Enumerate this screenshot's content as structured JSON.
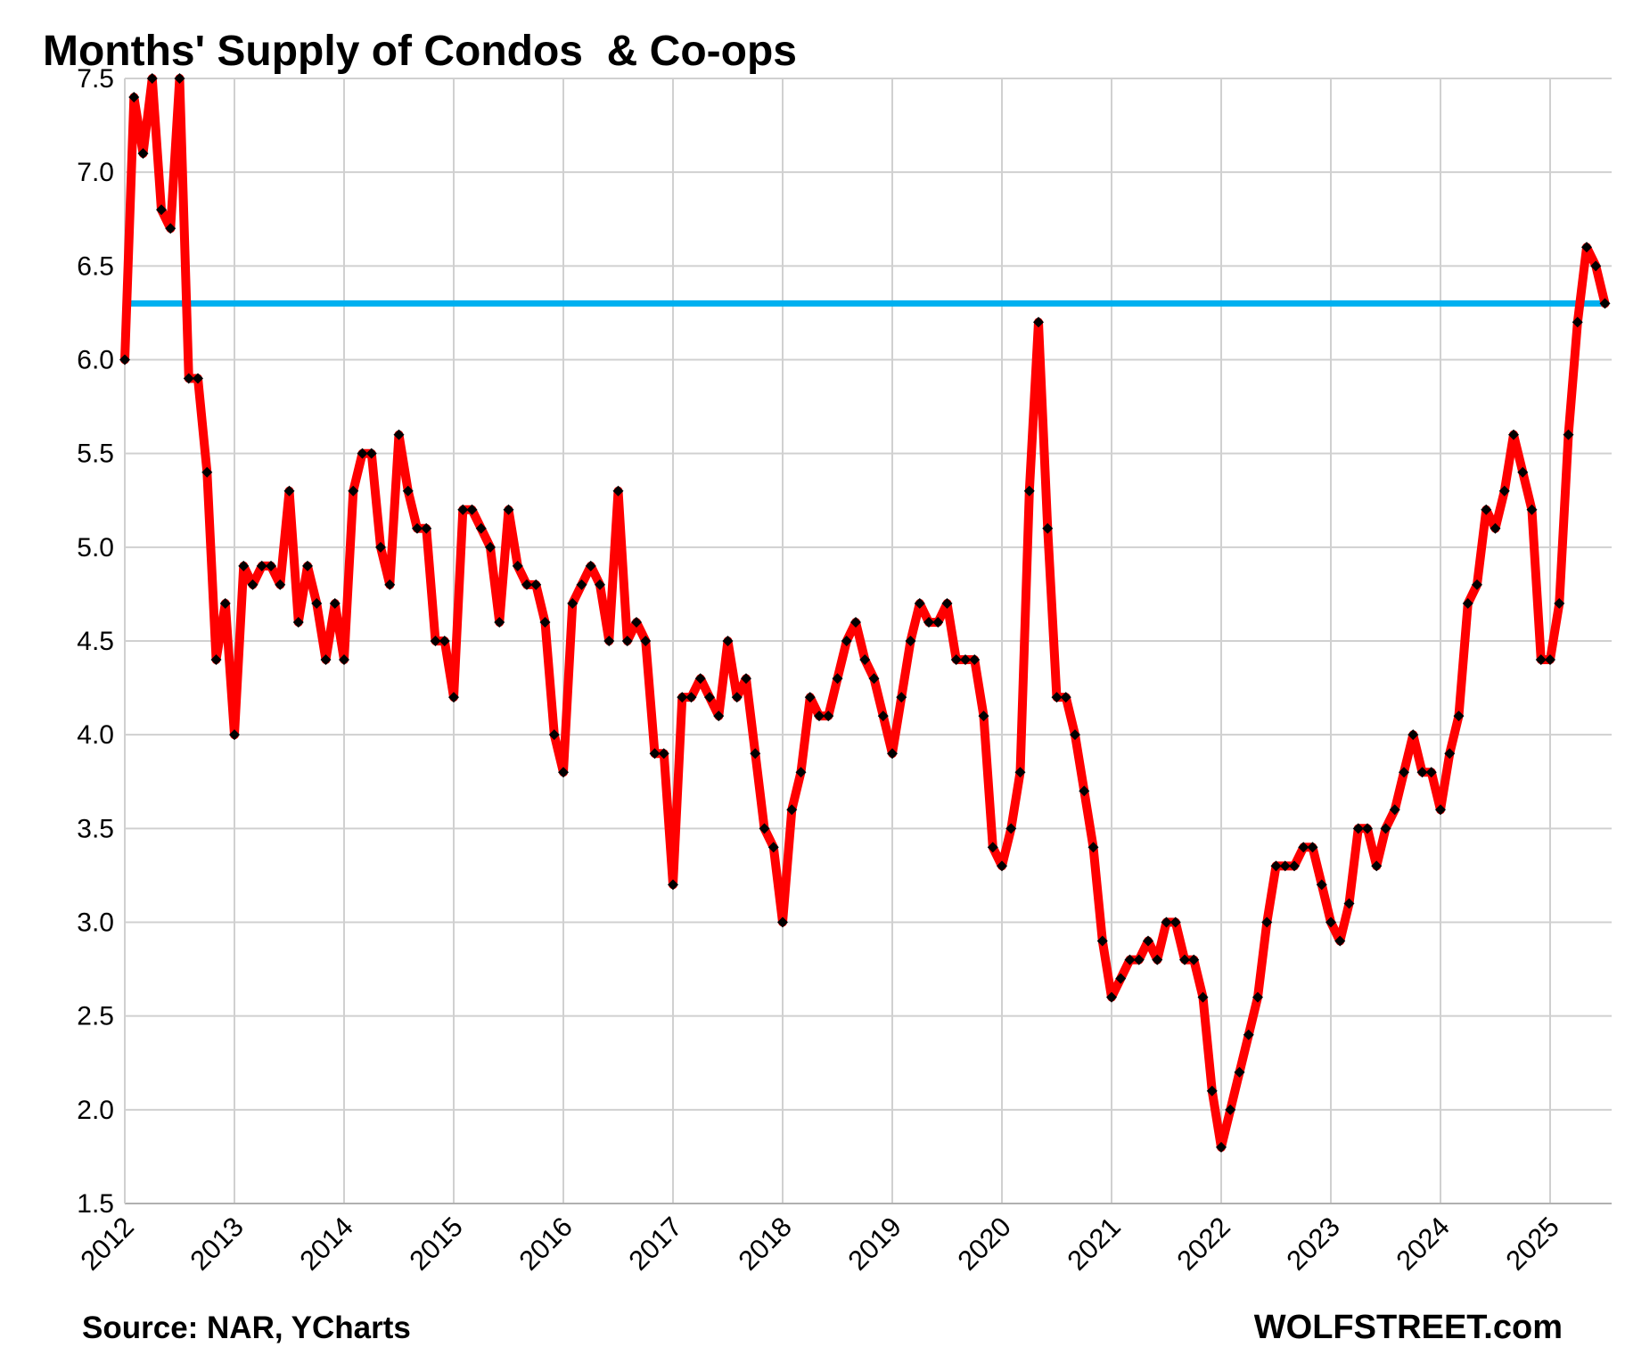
{
  "chart_data": {
    "type": "line",
    "title": "Months' Supply of Condos  & Co-ops",
    "source": "Source: NAR, YCharts",
    "brand": "WOLFSTREET.com",
    "xlabel": "",
    "ylabel": "",
    "x_start": "2012-01",
    "x_ticks": [
      "2012",
      "2013",
      "2014",
      "2015",
      "2016",
      "2017",
      "2018",
      "2019",
      "2020",
      "2021",
      "2022",
      "2023",
      "2024",
      "2025"
    ],
    "y_ticks": [
      "1.5",
      "2.0",
      "2.5",
      "3.0",
      "3.5",
      "4.0",
      "4.5",
      "5.0",
      "5.5",
      "6.0",
      "6.5",
      "7.0",
      "7.5"
    ],
    "ylim": [
      1.5,
      7.5
    ],
    "xlim": [
      "2012-01",
      "2025-07"
    ],
    "grid": true,
    "legend": "none",
    "series": [
      {
        "color": "#ff0000",
        "marker_color": "#000000",
        "values": [
          6.0,
          7.4,
          7.1,
          7.5,
          6.8,
          6.7,
          7.5,
          5.9,
          5.9,
          5.4,
          4.4,
          4.7,
          4.0,
          4.9,
          4.8,
          4.9,
          4.9,
          4.8,
          5.3,
          4.6,
          4.9,
          4.7,
          4.4,
          4.7,
          4.4,
          5.3,
          5.5,
          5.5,
          5.0,
          4.8,
          5.6,
          5.3,
          5.1,
          5.1,
          4.5,
          4.5,
          4.2,
          5.2,
          5.2,
          5.1,
          5.0,
          4.6,
          5.2,
          4.9,
          4.8,
          4.8,
          4.6,
          4.0,
          3.8,
          4.7,
          4.8,
          4.9,
          4.8,
          4.5,
          5.3,
          4.5,
          4.6,
          4.5,
          3.9,
          3.9,
          3.2,
          4.2,
          4.2,
          4.3,
          4.2,
          4.1,
          4.5,
          4.2,
          4.3,
          3.9,
          3.5,
          3.4,
          3.0,
          3.6,
          3.8,
          4.2,
          4.1,
          4.1,
          4.3,
          4.5,
          4.6,
          4.4,
          4.3,
          4.1,
          3.9,
          4.2,
          4.5,
          4.7,
          4.6,
          4.6,
          4.7,
          4.4,
          4.4,
          4.4,
          4.1,
          3.4,
          3.3,
          3.5,
          3.8,
          5.3,
          6.2,
          5.1,
          4.2,
          4.2,
          4.0,
          3.7,
          3.4,
          2.9,
          2.6,
          2.7,
          2.8,
          2.8,
          2.9,
          2.8,
          3.0,
          3.0,
          2.8,
          2.8,
          2.6,
          2.1,
          1.8,
          2.0,
          2.2,
          2.4,
          2.6,
          3.0,
          3.3,
          3.3,
          3.3,
          3.4,
          3.4,
          3.2,
          3.0,
          2.9,
          3.1,
          3.5,
          3.5,
          3.3,
          3.5,
          3.6,
          3.8,
          4.0,
          3.8,
          3.8,
          3.6,
          3.9,
          4.1,
          4.7,
          4.8,
          5.2,
          5.1,
          5.3,
          5.6,
          5.4,
          5.2,
          4.4,
          4.4,
          4.7,
          5.6,
          6.2,
          6.6,
          6.5,
          6.3
        ]
      }
    ],
    "reference_line": {
      "value": 6.3,
      "color": "#00b0f0"
    }
  }
}
